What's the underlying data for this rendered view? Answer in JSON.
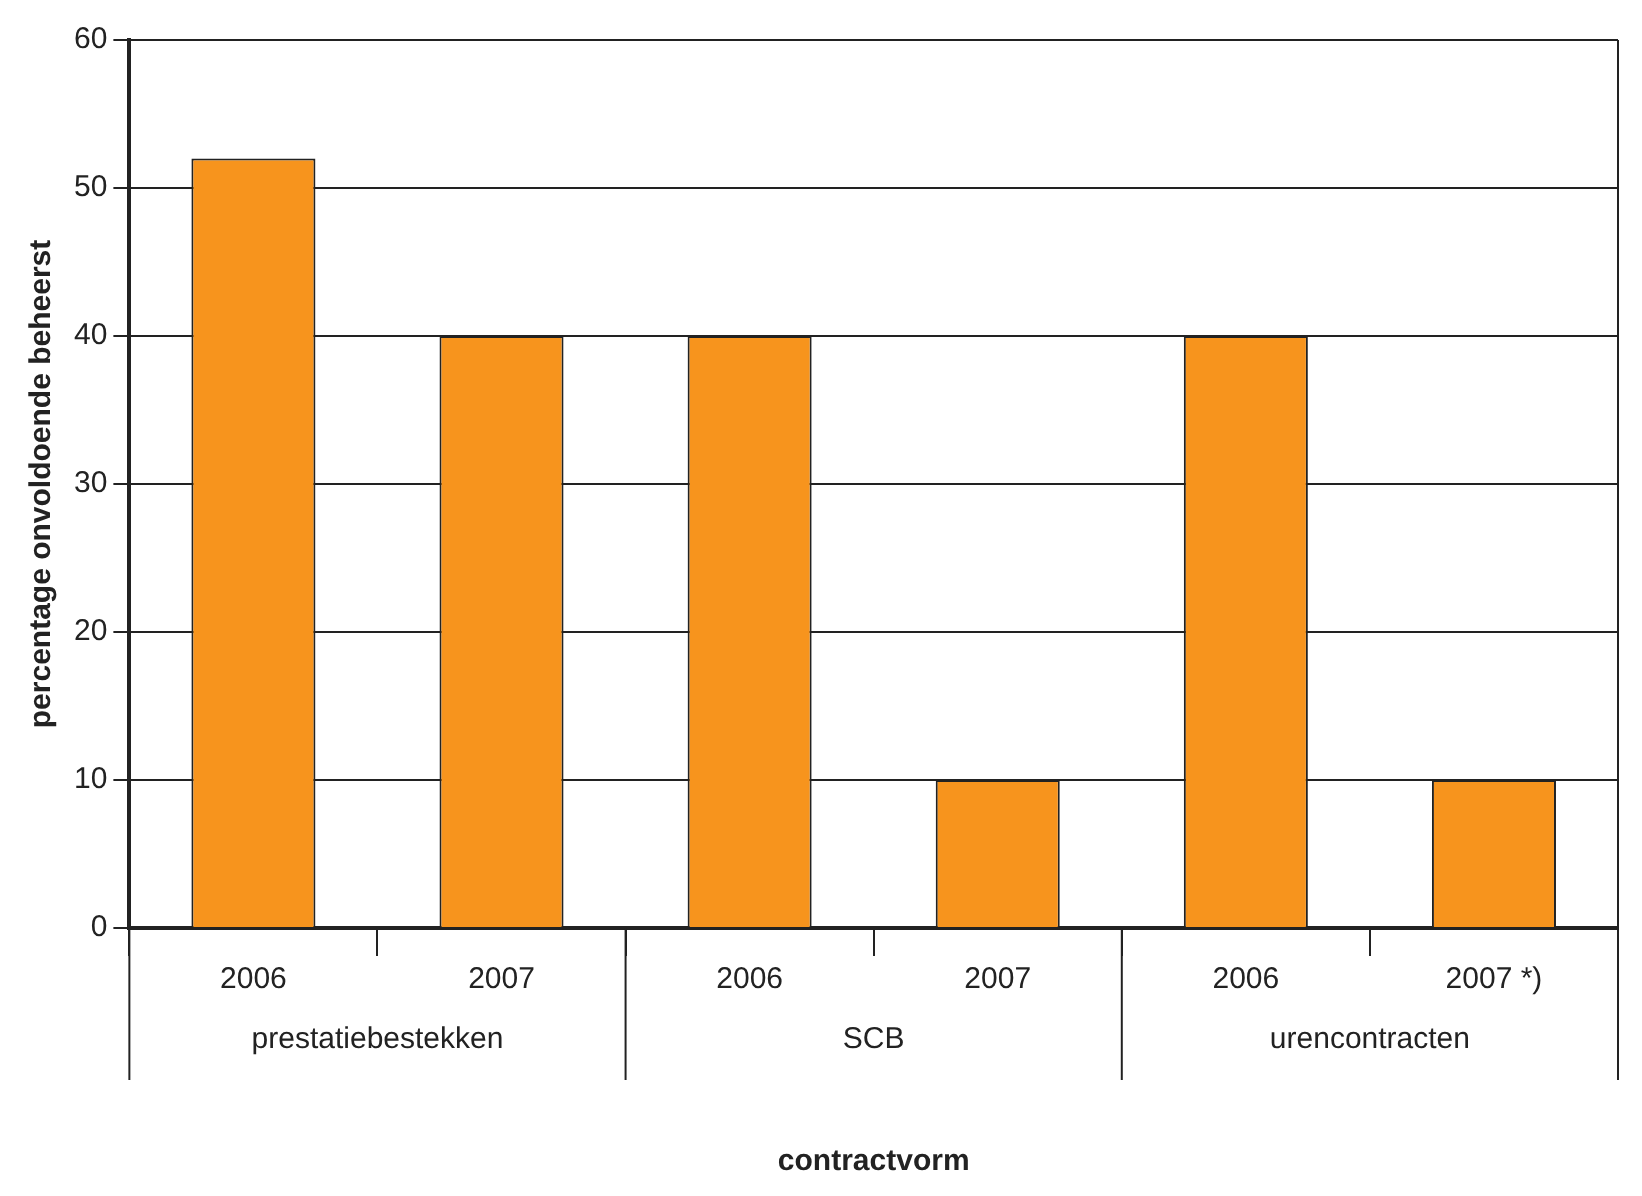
{
  "chart_data": {
    "type": "bar",
    "xlabel": "contractvorm",
    "ylabel": "percentage onvoldoende beheerst",
    "categories": [
      "2006",
      "2007",
      "2006",
      "2007",
      "2006",
      "2007 *)"
    ],
    "values": [
      52,
      40,
      40,
      10,
      40,
      10
    ],
    "color": "#f7941d",
    "annotations": [
      "prestatiebestekken",
      "SCB",
      "urencontracten"
    ],
    "ylim": [
      0,
      60
    ],
    "yticks": [
      0,
      10,
      20,
      30,
      40,
      50,
      60
    ],
    "grid": "y",
    "legend": false
  }
}
